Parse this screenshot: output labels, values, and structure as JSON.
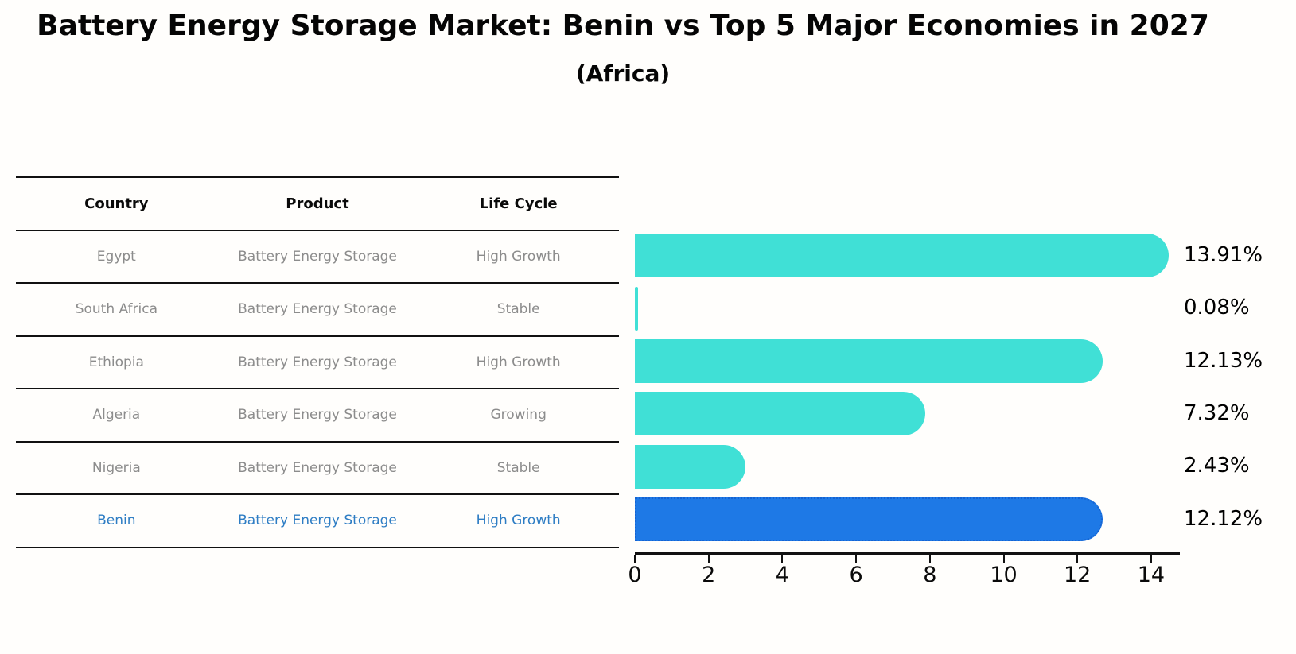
{
  "title": {
    "main": "Battery Energy Storage Market: Benin vs Top 5 Major Economies in 2027",
    "sub": "(Africa)"
  },
  "table": {
    "headers": [
      "Country",
      "Product",
      "Life Cycle"
    ],
    "rows": [
      {
        "country": "Egypt",
        "product": "Battery Energy Storage",
        "life_cycle": "High Growth",
        "highlight": false
      },
      {
        "country": "South Africa",
        "product": "Battery Energy Storage",
        "life_cycle": "Stable",
        "highlight": false
      },
      {
        "country": "Ethiopia",
        "product": "Battery Energy Storage",
        "life_cycle": "High Growth",
        "highlight": false
      },
      {
        "country": "Algeria",
        "product": "Battery Energy Storage",
        "life_cycle": "Growing",
        "highlight": false
      },
      {
        "country": "Nigeria",
        "product": "Battery Energy Storage",
        "life_cycle": "Stable",
        "highlight": false
      },
      {
        "country": "Benin",
        "product": "Battery Energy Storage",
        "life_cycle": "High Growth",
        "highlight": true
      }
    ]
  },
  "chart_data": {
    "type": "bar",
    "orientation": "horizontal",
    "title": "Battery Energy Storage Market: Benin vs Top 5 Major Economies in 2027 (Africa)",
    "categories": [
      "Egypt",
      "South Africa",
      "Ethiopia",
      "Algeria",
      "Nigeria",
      "Benin"
    ],
    "values": [
      13.91,
      0.08,
      12.13,
      7.32,
      2.43,
      12.12
    ],
    "value_labels": [
      "13.91%",
      "0.08%",
      "12.13%",
      "7.32%",
      "2.43%",
      "12.12%"
    ],
    "x_ticks": [
      0,
      2,
      4,
      6,
      8,
      10,
      12,
      14
    ],
    "xlim": [
      0,
      14.8
    ],
    "xlabel": "",
    "ylabel": "",
    "grid": false,
    "legend_position": "none",
    "bar_color": "#40e0d6",
    "highlight_index": 5,
    "highlight_color": "#1e79e6",
    "highlight_border_color": "#1563d2",
    "text_color": "#000000",
    "highlight_text_color": "#2e7dc4"
  }
}
